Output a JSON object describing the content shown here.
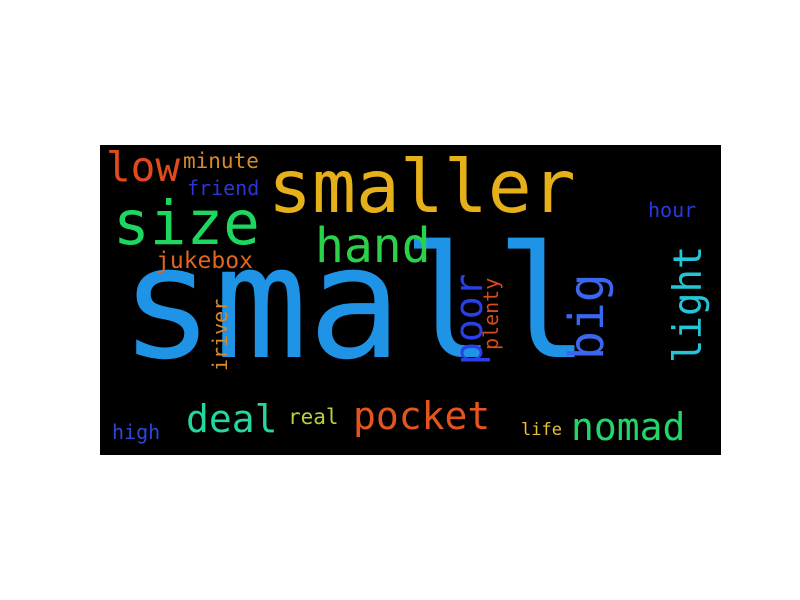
{
  "word_cloud": {
    "background": "#000000",
    "words": {
      "small": {
        "text": "small",
        "color": "#1f94e6"
      },
      "smaller": {
        "text": "smaller",
        "color": "#e6b01a"
      },
      "size": {
        "text": "size",
        "color": "#1ed760"
      },
      "hand": {
        "text": "hand",
        "color": "#2ad24a"
      },
      "low": {
        "text": "low",
        "color": "#e04a1e"
      },
      "minute": {
        "text": "minute",
        "color": "#d98a2a"
      },
      "friend": {
        "text": "friend",
        "color": "#2a36d6"
      },
      "hour": {
        "text": "hour",
        "color": "#2a3ae0"
      },
      "jukebox": {
        "text": "jukebox",
        "color": "#e0661e"
      },
      "big": {
        "text": "big",
        "color": "#3a66f0"
      },
      "light": {
        "text": "light",
        "color": "#22c6d6"
      },
      "poor": {
        "text": "poor",
        "color": "#2a40e6"
      },
      "plenty": {
        "text": "plenty",
        "color": "#d8491e"
      },
      "iriver": {
        "text": "iriver",
        "color": "#d68a30"
      },
      "pocket": {
        "text": "pocket",
        "color": "#e3541e"
      },
      "deal": {
        "text": "deal",
        "color": "#25d6a0"
      },
      "nomad": {
        "text": "nomad",
        "color": "#22d66a"
      },
      "high": {
        "text": "high",
        "color": "#2a48d8"
      },
      "real": {
        "text": "real",
        "color": "#b6d23a"
      },
      "life": {
        "text": "life",
        "color": "#e6c23a"
      }
    }
  }
}
